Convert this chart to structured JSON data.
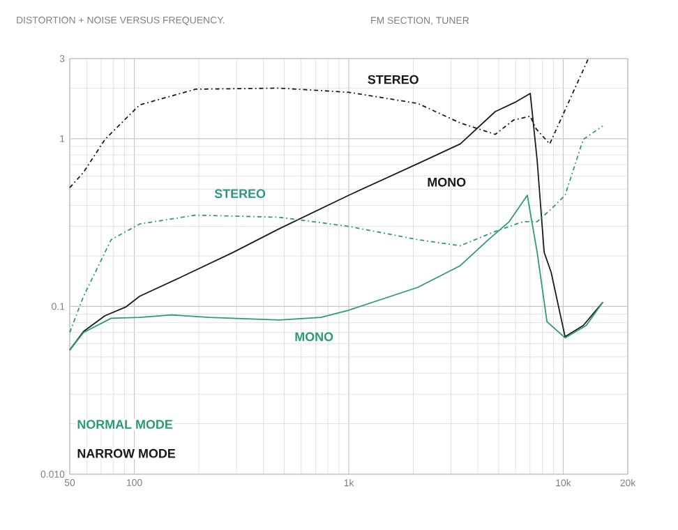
{
  "chart_data": {
    "type": "line",
    "title": "DISTORTION + NOISE VERSUS FREQUENCY.",
    "subtitle": "FM SECTION, TUNER",
    "log": "xy",
    "grid": true,
    "xlim": [
      50,
      20000
    ],
    "ylim": [
      0.01,
      3
    ],
    "xticks": [
      50,
      100,
      {
        "value": 1000,
        "label": "1k"
      },
      {
        "value": 10000,
        "label": "10k"
      },
      {
        "value": 20000,
        "label": "20k"
      }
    ],
    "yticks": [
      {
        "value": 0.01,
        "label": "0.010"
      },
      {
        "value": 0.1,
        "label": "0.1"
      },
      1,
      3
    ],
    "annotations": [
      "NORMAL MODE",
      "NARROW MODE"
    ],
    "series": [
      {
        "name": "STEREO",
        "color": "#1a1a1a",
        "line_style": "dashed",
        "x": [
          50,
          58,
          73,
          106,
          193,
          473,
          1000,
          2100,
          3310,
          4820,
          5860,
          7020,
          7450,
          8650,
          13100
        ],
        "values": [
          0.51,
          0.63,
          0.99,
          1.59,
          1.97,
          2.0,
          1.89,
          1.62,
          1.24,
          1.06,
          1.29,
          1.36,
          1.15,
          0.93,
          3.0
        ]
      },
      {
        "name": "MONO",
        "color": "#1a1a1a",
        "line_style": "solid",
        "x": [
          50,
          58,
          73,
          91,
          106,
          166,
          289,
          473,
          1000,
          2100,
          3310,
          4820,
          6040,
          7020,
          7560,
          8150,
          8780,
          10200,
          12400,
          15300
        ],
        "values": [
          0.055,
          0.071,
          0.088,
          0.099,
          0.115,
          0.15,
          0.21,
          0.29,
          0.46,
          0.71,
          0.93,
          1.45,
          1.66,
          1.86,
          0.74,
          0.21,
          0.16,
          0.066,
          0.077,
          0.106
        ]
      },
      {
        "name": "STEREO",
        "color": "#2a9a78",
        "line_style": "dashed",
        "x": [
          50,
          58,
          78,
          106,
          193,
          473,
          1000,
          2100,
          3310,
          4820,
          6500,
          7560,
          8780,
          10200,
          12400,
          15300
        ],
        "values": [
          0.07,
          0.115,
          0.25,
          0.31,
          0.35,
          0.34,
          0.3,
          0.25,
          0.23,
          0.28,
          0.32,
          0.32,
          0.38,
          0.46,
          0.99,
          1.19
        ]
      },
      {
        "name": "MONO",
        "color": "#2a9a78",
        "line_style": "solid",
        "x": [
          50,
          58,
          78,
          106,
          149,
          224,
          473,
          741,
          1000,
          2100,
          3310,
          4480,
          5600,
          6800,
          7560,
          8400,
          10200,
          12800,
          15300
        ],
        "values": [
          0.055,
          0.07,
          0.085,
          0.086,
          0.089,
          0.086,
          0.083,
          0.086,
          0.095,
          0.13,
          0.175,
          0.25,
          0.32,
          0.46,
          0.21,
          0.081,
          0.065,
          0.077,
          0.106
        ]
      }
    ]
  }
}
